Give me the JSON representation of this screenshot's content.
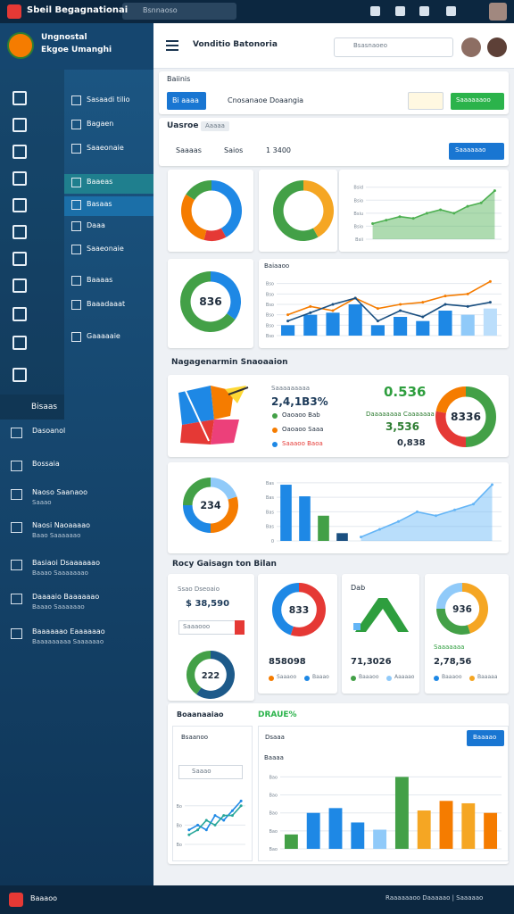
{
  "topbar": {
    "title": "Sbeil Begagnationai",
    "search": "Bsnnaoso"
  },
  "profile": {
    "line1": "Ungnostal",
    "line2": "Ekgoe Umanghi"
  },
  "nav": {
    "items": [
      "Sasaadi tilio",
      "Bagaen",
      "Saaeonaie",
      "Baaeas",
      "Basaas",
      "Daaa",
      "Saaeonaie",
      "Baaaas",
      "Baaadaaat",
      "Gaaaaaie"
    ],
    "active": 3,
    "selected": 4
  },
  "side": {
    "label": "Bisaas",
    "items": [
      {
        "title": "Dasoanol"
      },
      {
        "title": "Bossaia"
      },
      {
        "title": "Naoso Saanaoo",
        "sub": "Saaao"
      },
      {
        "title": "Naosi Naoaaaao",
        "sub": "Baao Saaaaaao"
      },
      {
        "title": "Basiaoi Dsaaaaaao",
        "sub": "Baaao Saaaaaaao"
      },
      {
        "title": "Daaaaio Baaaaaao",
        "sub": "Baaao Saaaaaao"
      },
      {
        "title": "Baaaaaao Eaaaaaao",
        "sub": "Baaaaaaaaa Saaaaaao"
      }
    ]
  },
  "footer": {
    "left": "Baaaoo",
    "right": "Raaaaaaoo Daaaaao | Saaaaao"
  },
  "header": {
    "title": "Vonditio Batonoria",
    "search": "Bsasnaoeo"
  },
  "panel": {
    "title": "Baiinis",
    "tab": "Bi aaaa",
    "back": "Cnosanaoe Doaangia",
    "action": "Saaaaaaoo"
  },
  "filter": {
    "title": "Uasroe",
    "chip": "Aaaaa",
    "field1": "Saaaas",
    "field2": "Saios",
    "field3": "1 3400",
    "button": "Saaaaaao"
  },
  "section1": "Nagagenarmin Snaoaaion",
  "stats": {
    "caption": "Saaaaaaaaa",
    "total": "2,4,1B3%",
    "legend": [
      {
        "label": "Oaoaoo Bab",
        "color": "#43a047"
      },
      {
        "label": "Oaoaoo Saaa",
        "color": "#f57c00"
      },
      {
        "label": "Saaaoo Baoa",
        "color": "#1e88e5"
      }
    ],
    "highlight": "0.536",
    "note": "Daaaaaaaa Caaaaaaa",
    "value1": "3,536",
    "value2": "0,838"
  },
  "section2": "Rocy Gaisagn ton Bilan",
  "summary": {
    "caption": "Ssao Dseoaio",
    "amount": "$ 38,590",
    "input": "Saaaooo"
  },
  "cards": [
    {
      "number": "858098",
      "legend": [
        {
          "label": "Saaaoo",
          "color": "#f57c00"
        },
        {
          "label": "Baaao",
          "color": "#1e88e5"
        }
      ]
    },
    {
      "title": "Dab",
      "number": "71,3026",
      "legend": [
        {
          "label": "Baaaoo",
          "color": "#43a047"
        },
        {
          "label": "Aaaaao",
          "color": "#90caf9"
        }
      ]
    },
    {
      "tag": "Saaaaaaa",
      "number": "2,78,56",
      "legend": [
        {
          "label": "Baaaoo",
          "color": "#1e88e5"
        },
        {
          "label": "Baaaaa",
          "color": "#f5a623"
        }
      ]
    }
  ],
  "report": {
    "title": "Boaanaaiao",
    "badge": "DRAUE%",
    "select": "Bsaanoo",
    "input": "Saaao",
    "tab": "Dsaaa",
    "button": "Baaaao"
  },
  "chart_data": [
    {
      "type": "donut",
      "values": [
        42,
        12,
        30,
        16
      ],
      "colors": [
        "#1e88e5",
        "#e53935",
        "#f57c00",
        "#43a047"
      ]
    },
    {
      "type": "donut",
      "values": [
        42,
        58
      ],
      "colors": [
        "#f5a623",
        "#43a047"
      ]
    },
    {
      "type": "combo",
      "ylim": [
        0,
        70
      ],
      "yticks": [
        {
          "value": 60,
          "label": "Bsid"
        },
        {
          "value": 45,
          "label": "Bsio"
        },
        {
          "value": 30,
          "label": "Bsiu"
        },
        {
          "value": 15,
          "label": "Bsio"
        },
        {
          "value": 0,
          "label": "Bsii"
        }
      ],
      "grid": true,
      "series": [
        {
          "kind": "area",
          "color": "#4caf50",
          "values": [
            18,
            22,
            26,
            24,
            30,
            34,
            30,
            38,
            42,
            56
          ]
        }
      ]
    },
    {
      "type": "donut",
      "values": [
        35,
        65
      ],
      "colors": [
        "#1e88e5",
        "#43a047"
      ],
      "center": "836"
    },
    {
      "type": "combo",
      "title": "Baiaaoo",
      "ylim": [
        0,
        60
      ],
      "yticks": [
        {
          "value": 50,
          "label": "Bso"
        },
        {
          "value": 40,
          "label": "Bso"
        },
        {
          "value": 30,
          "label": "Bso"
        },
        {
          "value": 20,
          "label": "Bso"
        },
        {
          "value": 10,
          "label": "Bso"
        },
        {
          "value": 0,
          "label": "Bso"
        }
      ],
      "grid": true,
      "series": [
        {
          "kind": "bar",
          "color": "#1e88e5",
          "colors": [
            "#1e88e5",
            "#1e88e5",
            "#1e88e5",
            "#1e88e5",
            "#1e88e5",
            "#1e88e5",
            "#1e88e5",
            "#1e88e5",
            "#90caf9",
            "#bbdefb"
          ],
          "values": [
            10,
            20,
            22,
            30,
            10,
            18,
            14,
            24,
            20,
            26
          ]
        },
        {
          "kind": "line",
          "color": "#f57c00",
          "values": [
            20,
            28,
            24,
            36,
            26,
            30,
            32,
            38,
            40,
            52
          ]
        },
        {
          "kind": "line",
          "color": "#1a4f80",
          "values": [
            14,
            22,
            30,
            36,
            14,
            24,
            18,
            30,
            28,
            32
          ]
        }
      ]
    },
    {
      "type": "donut",
      "values": [
        50,
        28,
        22
      ],
      "colors": [
        "#43a047",
        "#e53935",
        "#f57c00"
      ],
      "center": "8336"
    },
    {
      "type": "donut",
      "values": [
        20,
        30,
        25,
        25
      ],
      "colors": [
        "#90caf9",
        "#f57c00",
        "#1e88e5",
        "#43a047"
      ],
      "center": "234"
    },
    {
      "type": "combo",
      "ylim": [
        0,
        70
      ],
      "yticks": [
        {
          "value": 60,
          "label": "Bas"
        },
        {
          "value": 45,
          "label": "Bas"
        },
        {
          "value": 30,
          "label": "Bas"
        },
        {
          "value": 15,
          "label": "Bas"
        },
        {
          "value": 0,
          "label": "0"
        }
      ],
      "grid": true,
      "series": [
        {
          "kind": "bar",
          "color": "#1e88e5",
          "colors": [
            "#1e88e5",
            "#1e88e5",
            "#43a047",
            "#1a4f80",
            null,
            null,
            null,
            null,
            null,
            null,
            null,
            null
          ],
          "values": [
            58,
            46,
            26,
            8,
            null,
            null,
            null,
            null,
            null,
            null,
            null,
            null
          ]
        },
        {
          "kind": "area",
          "color": "#64b5f6",
          "values": [
            null,
            null,
            null,
            null,
            4,
            12,
            20,
            30,
            26,
            32,
            38,
            58
          ]
        }
      ]
    },
    {
      "type": "donut",
      "values": [
        60,
        40
      ],
      "colors": [
        "#1d5a8a",
        "#43a047"
      ],
      "center": "222"
    },
    {
      "type": "donut",
      "values": [
        55,
        45
      ],
      "colors": [
        "#e53935",
        "#1e88e5"
      ],
      "center": "833"
    },
    {
      "type": "donut",
      "values": [
        45,
        30,
        25
      ],
      "colors": [
        "#f5a623",
        "#43a047",
        "#90caf9"
      ],
      "center": "936"
    },
    {
      "type": "combo",
      "ylim": [
        0,
        10
      ],
      "yticks": [
        {
          "value": 8,
          "label": "Bo"
        },
        {
          "value": 4,
          "label": "Bo"
        },
        {
          "value": 0,
          "label": "Bo"
        }
      ],
      "grid": true,
      "series": [
        {
          "kind": "line",
          "color": "#1e88e5",
          "values": [
            3,
            4,
            3,
            6,
            5,
            7,
            9
          ]
        },
        {
          "kind": "line",
          "color": "#26a69a",
          "values": [
            2,
            3,
            5,
            4,
            6,
            6,
            8
          ]
        }
      ]
    },
    {
      "type": "combo",
      "title": "Baaaa",
      "ylim": [
        0,
        70
      ],
      "yticks": [
        {
          "value": 60,
          "label": "Bao"
        },
        {
          "value": 45,
          "label": "Bao"
        },
        {
          "value": 30,
          "label": "Bao"
        },
        {
          "value": 15,
          "label": "Bao"
        },
        {
          "value": 0,
          "label": "Bao"
        }
      ],
      "grid": true,
      "series": [
        {
          "kind": "bar",
          "color": "#1e88e5",
          "colors": [
            "#43a047",
            "#1e88e5",
            "#1e88e5",
            "#1e88e5",
            "#90caf9",
            "#43a047",
            "#f5a623",
            "#f57c00",
            "#f5a623",
            "#f57c00"
          ],
          "values": [
            12,
            30,
            34,
            22,
            16,
            60,
            32,
            40,
            38,
            30
          ]
        }
      ]
    }
  ]
}
